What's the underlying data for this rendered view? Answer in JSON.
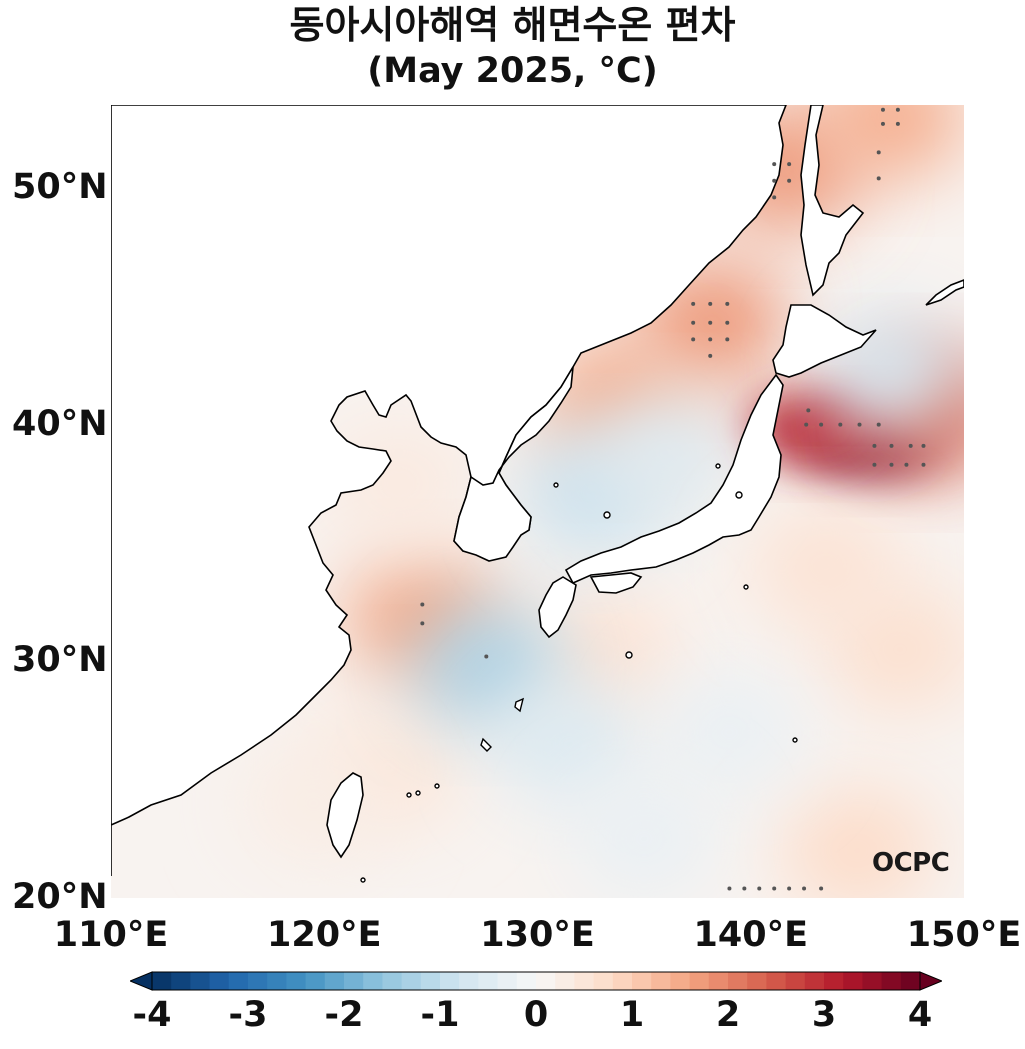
{
  "title": {
    "line1": "동아시아해역 해면수온 편차",
    "line2": "(May 2025, °C)"
  },
  "map": {
    "lon_range": [
      110,
      150
    ],
    "lat_range": [
      20,
      53.5
    ],
    "lat_ticks": [
      {
        "value": 50,
        "label": "50°N"
      },
      {
        "value": 40,
        "label": "40°N"
      },
      {
        "value": 30,
        "label": "30°N"
      },
      {
        "value": 20,
        "label": "20°N"
      }
    ],
    "lon_ticks": [
      {
        "value": 110,
        "label": "110°E"
      },
      {
        "value": 120,
        "label": "120°E"
      },
      {
        "value": 130,
        "label": "130°E"
      },
      {
        "value": 140,
        "label": "140°E"
      },
      {
        "value": 150,
        "label": "150°E"
      }
    ],
    "land_color": "#ffffff",
    "anomaly_areas": [
      {
        "name": "sanriku-east-of-japan",
        "lon": 145.5,
        "lat": 39.3,
        "value": 3.8
      },
      {
        "name": "east-of-japan-west",
        "lon": 142.8,
        "lat": 39.9,
        "value": 3.0
      },
      {
        "name": "off-hokkaido-east",
        "lon": 148.5,
        "lat": 40.5,
        "value": 2.4
      },
      {
        "name": "japan-sea-north",
        "lon": 138.2,
        "lat": 44.3,
        "value": 1.8
      },
      {
        "name": "japan-sea-west",
        "lon": 133.7,
        "lat": 40.9,
        "value": 1.6
      },
      {
        "name": "east-china-sea-north",
        "lon": 124.6,
        "lat": 31.8,
        "value": 1.6
      },
      {
        "name": "okhotsk-west",
        "lon": 141.6,
        "lat": 50.8,
        "value": 1.8
      },
      {
        "name": "okhotsk-east",
        "lon": 146.6,
        "lat": 53.0,
        "value": 1.5
      },
      {
        "name": "yellow-sea-north",
        "lon": 123.5,
        "lat": 37.5,
        "value": 0.4
      },
      {
        "name": "east-china-sea-south",
        "lon": 123.0,
        "lat": 25.5,
        "value": 0.5
      },
      {
        "name": "pacific-southeast",
        "lon": 145.0,
        "lat": 22.0,
        "value": 0.8
      },
      {
        "name": "pacific-east-30n",
        "lon": 147.0,
        "lat": 30.5,
        "value": 0.7
      },
      {
        "name": "kuroshio-east-of-kyushu",
        "lon": 133.0,
        "lat": 30.3,
        "value": 0.6
      },
      {
        "name": "east-china-sea-central",
        "lon": 127.6,
        "lat": 29.8,
        "value": -1.3
      },
      {
        "name": "japan-sea-south",
        "lon": 132.6,
        "lat": 37.1,
        "value": -0.9
      },
      {
        "name": "japan-sea-east",
        "lon": 136.0,
        "lat": 38.8,
        "value": -0.5
      },
      {
        "name": "pacific-ryukyu",
        "lon": 131.5,
        "lat": 26.5,
        "value": -0.6
      },
      {
        "name": "pacific-central",
        "lon": 139.0,
        "lat": 27.0,
        "value": -0.3
      },
      {
        "name": "pacific-south",
        "lon": 135.0,
        "lat": 22.5,
        "value": -0.3
      },
      {
        "name": "off-hokkaido-south",
        "lon": 146.5,
        "lat": 42.2,
        "value": -0.7
      },
      {
        "name": "east-of-honshu",
        "lon": 143.5,
        "lat": 34.0,
        "value": 0.6
      },
      {
        "name": "taiwan-strait",
        "lon": 119.5,
        "lat": 24.0,
        "value": 0.3
      }
    ],
    "significance_dots": [
      [
        145.1,
        40.0
      ],
      [
        144.2,
        40.0
      ],
      [
        143.3,
        40.0
      ],
      [
        142.6,
        40.0
      ],
      [
        142.7,
        40.6
      ],
      [
        146.0,
        40.0
      ],
      [
        146.6,
        39.1
      ],
      [
        145.8,
        39.1
      ],
      [
        147.5,
        39.1
      ],
      [
        148.1,
        39.1
      ],
      [
        145.8,
        38.3
      ],
      [
        146.6,
        38.3
      ],
      [
        147.3,
        38.3
      ],
      [
        148.1,
        38.3
      ],
      [
        137.3,
        45.1
      ],
      [
        138.1,
        45.1
      ],
      [
        138.9,
        45.1
      ],
      [
        137.3,
        44.3
      ],
      [
        138.1,
        44.3
      ],
      [
        138.9,
        44.3
      ],
      [
        137.3,
        43.6
      ],
      [
        138.1,
        43.6
      ],
      [
        138.9,
        43.6
      ],
      [
        138.1,
        42.9
      ],
      [
        141.1,
        51.0
      ],
      [
        141.8,
        51.0
      ],
      [
        141.1,
        50.3
      ],
      [
        141.8,
        50.3
      ],
      [
        141.1,
        49.6
      ],
      [
        146.2,
        53.3
      ],
      [
        146.9,
        53.3
      ],
      [
        146.2,
        52.7
      ],
      [
        146.9,
        52.7
      ],
      [
        146.0,
        51.5
      ],
      [
        146.0,
        50.4
      ],
      [
        124.6,
        32.4
      ],
      [
        124.6,
        31.6
      ],
      [
        127.6,
        30.2
      ],
      [
        139.0,
        20.4
      ],
      [
        139.7,
        20.4
      ],
      [
        140.4,
        20.4
      ],
      [
        141.1,
        20.4
      ],
      [
        141.8,
        20.4
      ],
      [
        142.5,
        20.4
      ],
      [
        143.3,
        20.4
      ]
    ],
    "logo_text": "OCPC"
  },
  "colorbar": {
    "min": -4,
    "max": 4,
    "steps": 40,
    "ticks": [
      "-4",
      "-3",
      "-2",
      "-1",
      "0",
      "1",
      "2",
      "3",
      "4"
    ],
    "colors": [
      "#053061",
      "#2166ac",
      "#4393c3",
      "#92c5de",
      "#d1e5f0",
      "#f7f7f7",
      "#fddbc7",
      "#f4a582",
      "#d6604d",
      "#b2182b",
      "#67001f"
    ]
  }
}
